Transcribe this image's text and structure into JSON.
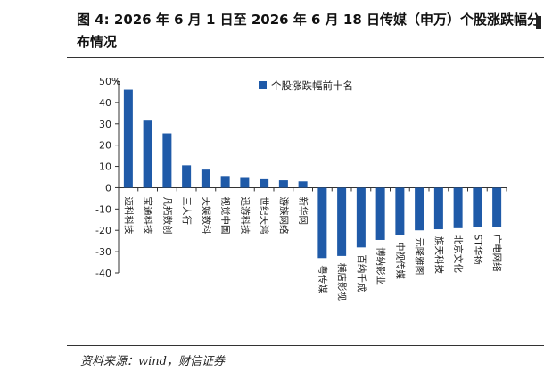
{
  "figure": {
    "title": "图 4:  2026 年 6 月 1 日至 2026 年 6 月 18 日传媒（申万）个股涨跌幅分布情况",
    "source": "资料来源：wind，财信证券"
  },
  "chart_data": {
    "type": "bar",
    "title": "",
    "xlabel": "",
    "ylabel": "%",
    "ylim": [
      -40,
      50
    ],
    "yticks": [
      50,
      40,
      30,
      20,
      10,
      0,
      -10,
      -20,
      -30,
      -40
    ],
    "grid": false,
    "legend_position": "top-right",
    "color": "#1f5aa8",
    "categories": [
      "迈科科技",
      "宝通科技",
      "凡拓数创",
      "三人行",
      "天娱数科",
      "视觉中国",
      "迅游科技",
      "世纪天鸿",
      "游族网络",
      "新华网",
      "粤传媒",
      "横店影视",
      "百纳千成",
      "博纳影业",
      "中视传媒",
      "元隆雅图",
      "旗天科技",
      "北京文化",
      "ST华扬",
      "广电网络"
    ],
    "series": [
      {
        "name": "个股涨跌幅前十名",
        "values": [
          46,
          31.5,
          25.5,
          10.5,
          8.5,
          5.5,
          5,
          4,
          3.5,
          3,
          -33,
          -32,
          -28,
          -24.5,
          -22,
          -20,
          -19.5,
          -19,
          -18.5,
          -18.5
        ]
      }
    ]
  }
}
